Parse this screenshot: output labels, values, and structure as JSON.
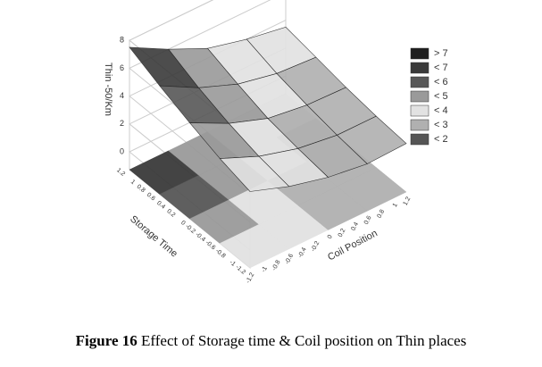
{
  "chart_data": {
    "type": "surface",
    "zlabel": "Thin -50/Km",
    "ylabel": "Storage Time",
    "xlabel": "Coil Position",
    "x": [
      -1.2,
      -0.6,
      0,
      0.6,
      1.2
    ],
    "y": [
      -1.2,
      -0.6,
      0,
      0.6,
      1.2
    ],
    "z": [
      [
        4.2,
        3.2,
        2.5,
        2.1,
        2.2
      ],
      [
        4.8,
        3.6,
        2.8,
        2.4,
        2.4
      ],
      [
        5.6,
        4.2,
        3.2,
        2.8,
        2.7
      ],
      [
        6.5,
        5.0,
        3.9,
        3.3,
        3.1
      ],
      [
        7.5,
        6.0,
        4.7,
        4.0,
        3.5
      ]
    ],
    "xlim": [
      -1.2,
      1.2
    ],
    "ylim": [
      -1.2,
      1.2
    ],
    "zlim": [
      0,
      8
    ],
    "xticks": [
      -1.2,
      -1,
      -0.8,
      -0.6,
      -0.4,
      -0.2,
      0,
      0.2,
      0.4,
      0.6,
      0.8,
      1,
      1.2
    ],
    "yticks": [
      -1.2,
      -1,
      -0.8,
      -0.6,
      -0.4,
      -0.2,
      0,
      0.2,
      0.4,
      0.6,
      0.8,
      1,
      1.2
    ],
    "zticks": [
      0,
      2,
      4,
      6,
      8
    ],
    "legend": [
      {
        "value": 7,
        "label": "> 7",
        "color": "#1e1e1e"
      },
      {
        "value": 7,
        "label": "< 7",
        "color": "#3a3a3a"
      },
      {
        "value": 6,
        "label": "< 6",
        "color": "#575757"
      },
      {
        "value": 5,
        "label": "< 5",
        "color": "#9a9a9a"
      },
      {
        "value": 4,
        "label": "< 4",
        "color": "#e2e2e2"
      },
      {
        "value": 3,
        "label": "< 3",
        "color": "#b0b0b0"
      },
      {
        "value": 2,
        "label": "< 2",
        "color": "#555555"
      }
    ]
  },
  "caption": {
    "label": "Figure 16",
    "text": "Effect of Storage time & Coil position on Thin places"
  }
}
